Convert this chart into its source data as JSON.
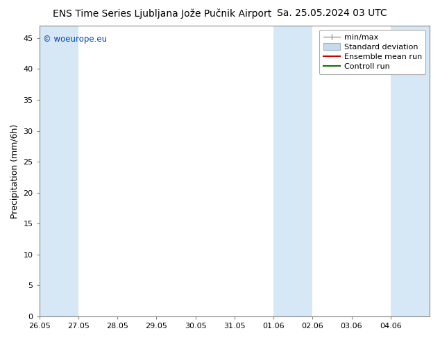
{
  "title": "ENS Time Series Ljubljana Jože Pučnik Airport",
  "title_right": "Sa. 25.05.2024 03 UTC",
  "ylabel": "Precipitation (mm/6h)",
  "watermark": "© woeurope.eu",
  "xlim": [
    0,
    10
  ],
  "ylim": [
    0,
    47
  ],
  "yticks": [
    0,
    5,
    10,
    15,
    20,
    25,
    30,
    35,
    40,
    45
  ],
  "xtick_labels": [
    "26.05",
    "27.05",
    "28.05",
    "29.05",
    "30.05",
    "31.05",
    "01.06",
    "02.06",
    "03.06",
    "04.06"
  ],
  "shaded_regions": [
    {
      "x_start": 0.0,
      "x_end": 1.0,
      "color": "#d6e8f5"
    },
    {
      "x_start": 6.0,
      "x_end": 7.0,
      "color": "#d6e8f5"
    },
    {
      "x_start": 9.0,
      "x_end": 10.0,
      "color": "#d6e8f5"
    }
  ],
  "legend_entries": [
    {
      "label": "min/max",
      "type": "errorbar",
      "color": "#999999"
    },
    {
      "label": "Standard deviation",
      "type": "patch",
      "color": "#c8daea"
    },
    {
      "label": "Ensemble mean run",
      "type": "line",
      "color": "#cc0000"
    },
    {
      "label": "Controll run",
      "type": "line",
      "color": "#007700"
    }
  ],
  "bg_color": "#ffffff",
  "watermark_color": "#0044bb",
  "title_fontsize": 10,
  "tick_fontsize": 8,
  "ylabel_fontsize": 9,
  "legend_fontsize": 8
}
